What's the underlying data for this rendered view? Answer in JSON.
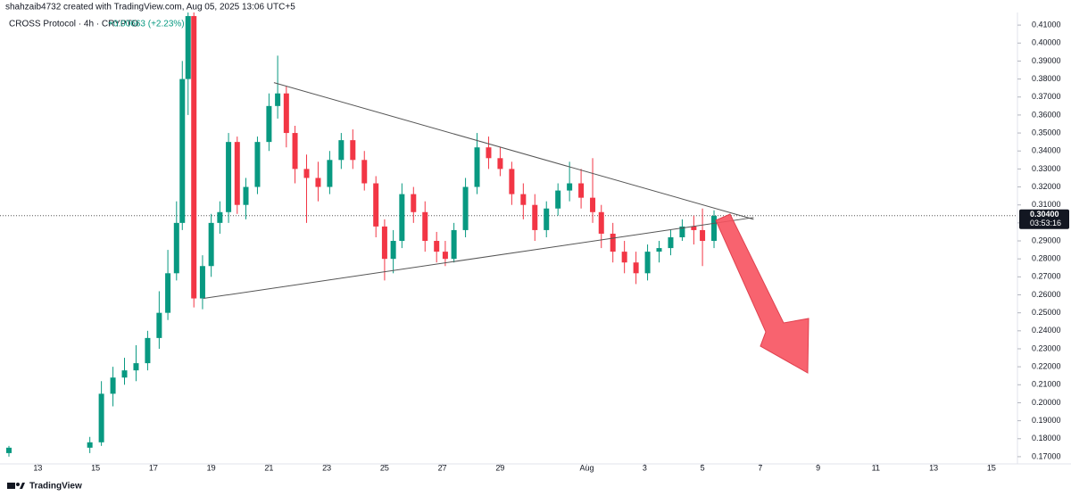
{
  "chart_data": {
    "type": "candlestick",
    "header": "shahzaib4732 created with TradingView.com, Aug 05, 2025 13:06 UTC+5",
    "title": "CROSS Protocol · 4h · CRYPTO",
    "change": "+0.00663 (+2.23%)",
    "brand": "TradingView",
    "up_color": "#089981",
    "down_color": "#f23645",
    "x": [
      12.0,
      14.8,
      15.2,
      15.6,
      16.0,
      16.4,
      16.8,
      17.2,
      17.5,
      17.8,
      18.0,
      18.2,
      18.4,
      18.7,
      19.0,
      19.3,
      19.6,
      19.9,
      20.2,
      20.6,
      21.0,
      21.3,
      21.6,
      21.9,
      22.3,
      22.7,
      23.1,
      23.5,
      23.9,
      24.3,
      24.7,
      25.0,
      25.3,
      25.6,
      26.0,
      26.4,
      26.8,
      27.1,
      27.4,
      27.8,
      28.2,
      28.6,
      29.0,
      29.4,
      29.8,
      30.2,
      30.6,
      31.0,
      31.4,
      31.8,
      32.2,
      32.5,
      32.9,
      33.3,
      33.7,
      34.1,
      34.5,
      34.9,
      35.3,
      35.7,
      36.0,
      36.4
    ],
    "open": [
      0.172,
      0.175,
      0.178,
      0.205,
      0.214,
      0.218,
      0.222,
      0.236,
      0.25,
      0.272,
      0.3,
      0.38,
      0.415,
      0.258,
      0.276,
      0.3,
      0.306,
      0.345,
      0.31,
      0.32,
      0.345,
      0.365,
      0.372,
      0.35,
      0.33,
      0.325,
      0.32,
      0.335,
      0.346,
      0.335,
      0.322,
      0.298,
      0.28,
      0.29,
      0.316,
      0.306,
      0.29,
      0.284,
      0.28,
      0.296,
      0.32,
      0.342,
      0.336,
      0.33,
      0.316,
      0.31,
      0.296,
      0.308,
      0.318,
      0.322,
      0.314,
      0.306,
      0.294,
      0.284,
      0.278,
      0.272,
      0.284,
      0.286,
      0.292,
      0.298,
      0.296,
      0.29
    ],
    "high": [
      0.176,
      0.181,
      0.212,
      0.22,
      0.225,
      0.232,
      0.24,
      0.262,
      0.285,
      0.312,
      0.39,
      0.42,
      0.418,
      0.282,
      0.305,
      0.312,
      0.35,
      0.348,
      0.325,
      0.348,
      0.372,
      0.393,
      0.376,
      0.354,
      0.338,
      0.334,
      0.34,
      0.35,
      0.352,
      0.34,
      0.326,
      0.302,
      0.296,
      0.322,
      0.32,
      0.312,
      0.295,
      0.29,
      0.3,
      0.325,
      0.35,
      0.348,
      0.342,
      0.334,
      0.322,
      0.316,
      0.312,
      0.322,
      0.334,
      0.33,
      0.336,
      0.31,
      0.3,
      0.29,
      0.284,
      0.288,
      0.29,
      0.296,
      0.302,
      0.304,
      0.308,
      0.307
    ],
    "low": [
      0.17,
      0.172,
      0.176,
      0.198,
      0.21,
      0.212,
      0.218,
      0.23,
      0.246,
      0.268,
      0.296,
      0.36,
      0.253,
      0.252,
      0.27,
      0.294,
      0.3,
      0.305,
      0.302,
      0.316,
      0.34,
      0.358,
      0.342,
      0.322,
      0.3,
      0.312,
      0.316,
      0.33,
      0.33,
      0.318,
      0.292,
      0.268,
      0.272,
      0.286,
      0.3,
      0.284,
      0.278,
      0.276,
      0.278,
      0.292,
      0.316,
      0.33,
      0.326,
      0.31,
      0.302,
      0.29,
      0.292,
      0.304,
      0.312,
      0.308,
      0.3,
      0.286,
      0.278,
      0.272,
      0.266,
      0.268,
      0.278,
      0.282,
      0.29,
      0.288,
      0.276,
      0.286
    ],
    "close": [
      0.175,
      0.178,
      0.205,
      0.214,
      0.218,
      0.222,
      0.236,
      0.25,
      0.272,
      0.3,
      0.38,
      0.415,
      0.258,
      0.276,
      0.3,
      0.306,
      0.345,
      0.31,
      0.32,
      0.345,
      0.365,
      0.372,
      0.35,
      0.33,
      0.325,
      0.32,
      0.335,
      0.346,
      0.335,
      0.322,
      0.298,
      0.28,
      0.29,
      0.316,
      0.306,
      0.29,
      0.284,
      0.28,
      0.296,
      0.32,
      0.342,
      0.336,
      0.33,
      0.316,
      0.31,
      0.296,
      0.308,
      0.318,
      0.322,
      0.314,
      0.306,
      0.294,
      0.284,
      0.278,
      0.272,
      0.284,
      0.286,
      0.292,
      0.298,
      0.296,
      0.29,
      0.304
    ],
    "trendlines": [
      {
        "x": [
          21.17,
          37.77
        ],
        "y": [
          0.378,
          0.302
        ]
      },
      {
        "x": [
          18.73,
          37.77
        ],
        "y": [
          0.258,
          0.303
        ]
      }
    ],
    "current_price": {
      "value": 0.304,
      "label": "0.30400"
    },
    "countdown": "03:53:16",
    "xlim": [
      12,
      46.9
    ],
    "ylim": [
      0.166,
      0.417
    ],
    "xticks": [
      13,
      15,
      17,
      19,
      21,
      23,
      25,
      27,
      29,
      {
        "value": 32,
        "label": "Aug"
      },
      {
        "value": 34,
        "label": "3"
      },
      {
        "value": 36,
        "label": "5"
      },
      {
        "value": 38,
        "label": "7"
      },
      {
        "value": 40,
        "label": "9"
      },
      {
        "value": 42,
        "label": "11"
      },
      {
        "value": 44,
        "label": "13"
      },
      {
        "value": 46,
        "label": "15"
      }
    ],
    "yticks": [
      {
        "value": 0.17,
        "label": "0.17000"
      },
      {
        "value": 0.18,
        "label": "0.18000"
      },
      {
        "value": 0.19,
        "label": "0.19000"
      },
      {
        "value": 0.2,
        "label": "0.20000"
      },
      {
        "value": 0.21,
        "label": "0.21000"
      },
      {
        "value": 0.22,
        "label": "0.22000"
      },
      {
        "value": 0.23,
        "label": "0.23000"
      },
      {
        "value": 0.24,
        "label": "0.24000"
      },
      {
        "value": 0.25,
        "label": "0.25000"
      },
      {
        "value": 0.26,
        "label": "0.26000"
      },
      {
        "value": 0.27,
        "label": "0.27000"
      },
      {
        "value": 0.28,
        "label": "0.28000"
      },
      {
        "value": 0.29,
        "label": "0.29000"
      },
      {
        "value": 0.3,
        "label": "0.30000"
      },
      {
        "value": 0.31,
        "label": "0.31000"
      },
      {
        "value": 0.32,
        "label": "0.32000"
      },
      {
        "value": 0.33,
        "label": "0.33000"
      },
      {
        "value": 0.34,
        "label": "0.34000"
      },
      {
        "value": 0.35,
        "label": "0.35000"
      },
      {
        "value": 0.36,
        "label": "0.36000"
      },
      {
        "value": 0.37,
        "label": "0.37000"
      },
      {
        "value": 0.38,
        "label": "0.38000"
      },
      {
        "value": 0.39,
        "label": "0.39000"
      },
      {
        "value": 0.4,
        "label": "0.40000"
      },
      {
        "value": 0.41,
        "label": "0.41000"
      }
    ]
  }
}
